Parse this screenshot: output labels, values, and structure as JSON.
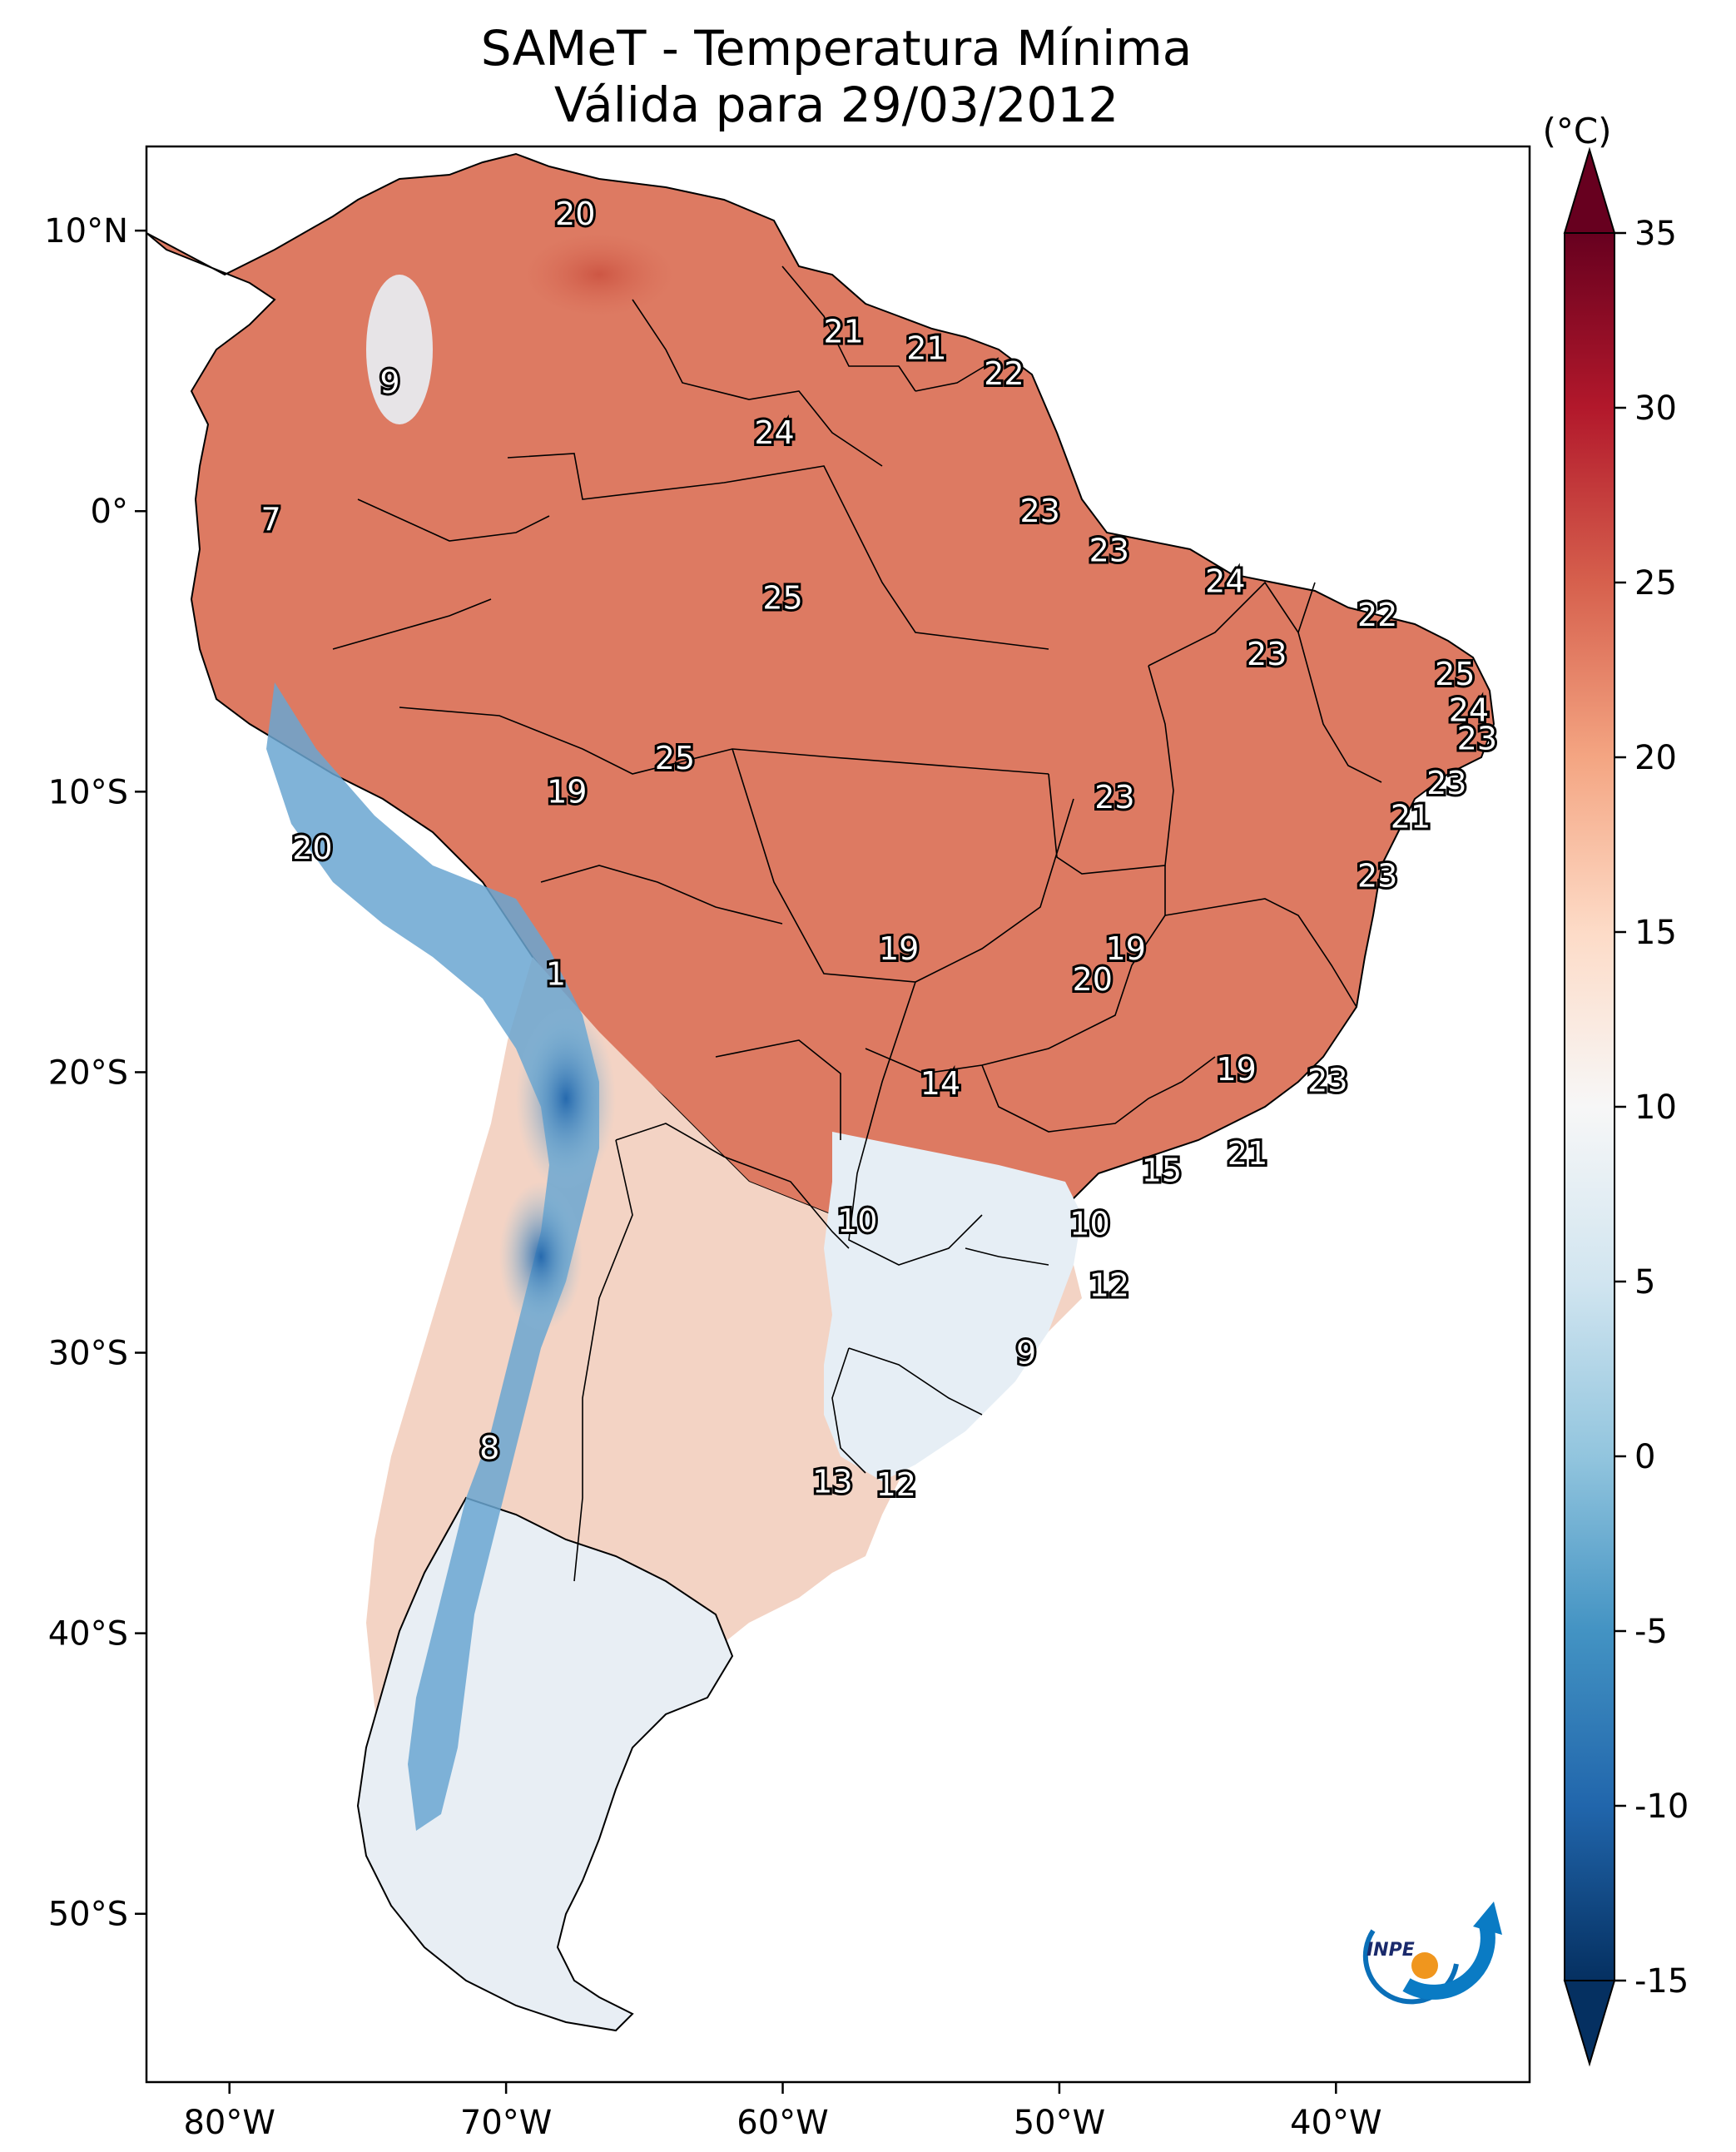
{
  "title": {
    "line1": "SAMeT - Temperatura Mínima",
    "line2": "Válida para 29/03/2012"
  },
  "map": {
    "x_ticks": [
      {
        "lon": -80,
        "label": "80°W"
      },
      {
        "lon": -70,
        "label": "70°W"
      },
      {
        "lon": -60,
        "label": "60°W"
      },
      {
        "lon": -50,
        "label": "50°W"
      },
      {
        "lon": -40,
        "label": "40°W"
      }
    ],
    "y_ticks": [
      {
        "lat": 10,
        "label": "10°N"
      },
      {
        "lat": 0,
        "label": "0°"
      },
      {
        "lat": -10,
        "label": "10°S"
      },
      {
        "lat": -20,
        "label": "20°S"
      },
      {
        "lat": -30,
        "label": "30°S"
      },
      {
        "lat": -40,
        "label": "40°S"
      },
      {
        "lat": -50,
        "label": "50°S"
      }
    ],
    "lon_range": [
      -83,
      -33
    ],
    "lat_range": [
      -56,
      13
    ],
    "labels": [
      {
        "text": "20",
        "lon": -67.5,
        "lat": 10.6
      },
      {
        "text": "9",
        "lon": -74.2,
        "lat": 4.6
      },
      {
        "text": "7",
        "lon": -78.5,
        "lat": -0.3
      },
      {
        "text": "21",
        "lon": -57.8,
        "lat": 6.4
      },
      {
        "text": "21",
        "lon": -54.8,
        "lat": 5.8
      },
      {
        "text": "22",
        "lon": -52.0,
        "lat": 4.9
      },
      {
        "text": "24",
        "lon": -60.3,
        "lat": 2.8
      },
      {
        "text": "23",
        "lon": -50.7,
        "lat": 0.0
      },
      {
        "text": "23",
        "lon": -48.2,
        "lat": -1.4
      },
      {
        "text": "24",
        "lon": -44.0,
        "lat": -2.5
      },
      {
        "text": "22",
        "lon": -38.5,
        "lat": -3.7
      },
      {
        "text": "25",
        "lon": -60.0,
        "lat": -3.1
      },
      {
        "text": "23",
        "lon": -42.5,
        "lat": -5.1
      },
      {
        "text": "25",
        "lon": -35.7,
        "lat": -5.8
      },
      {
        "text": "24",
        "lon": -35.2,
        "lat": -7.1
      },
      {
        "text": "23",
        "lon": -34.9,
        "lat": -8.1
      },
      {
        "text": "23",
        "lon": -36.0,
        "lat": -9.7
      },
      {
        "text": "21",
        "lon": -37.3,
        "lat": -10.9
      },
      {
        "text": "25",
        "lon": -63.9,
        "lat": -8.8
      },
      {
        "text": "19",
        "lon": -67.8,
        "lat": -10.0
      },
      {
        "text": "23",
        "lon": -48.0,
        "lat": -10.2
      },
      {
        "text": "20",
        "lon": -77.0,
        "lat": -12.0
      },
      {
        "text": "23",
        "lon": -38.5,
        "lat": -13.0
      },
      {
        "text": "19",
        "lon": -55.8,
        "lat": -15.6
      },
      {
        "text": "19",
        "lon": -47.6,
        "lat": -15.6
      },
      {
        "text": "20",
        "lon": -48.8,
        "lat": -16.7
      },
      {
        "text": "1",
        "lon": -68.2,
        "lat": -16.5
      },
      {
        "text": "19",
        "lon": -43.6,
        "lat": -19.9
      },
      {
        "text": "23",
        "lon": -40.3,
        "lat": -20.3
      },
      {
        "text": "14",
        "lon": -54.3,
        "lat": -20.4
      },
      {
        "text": "21",
        "lon": -43.2,
        "lat": -22.9
      },
      {
        "text": "15",
        "lon": -46.3,
        "lat": -23.5
      },
      {
        "text": "10",
        "lon": -57.3,
        "lat": -25.3
      },
      {
        "text": "10",
        "lon": -48.9,
        "lat": -25.4
      },
      {
        "text": "12",
        "lon": -48.2,
        "lat": -27.6
      },
      {
        "text": "9",
        "lon": -51.2,
        "lat": -30.0
      },
      {
        "text": "8",
        "lon": -70.6,
        "lat": -33.4
      },
      {
        "text": "13",
        "lon": -58.2,
        "lat": -34.6
      },
      {
        "text": "12",
        "lon": -55.9,
        "lat": -34.7
      }
    ]
  },
  "colorbar": {
    "unit": "(°C)",
    "min": -15,
    "max": 35,
    "ticks": [
      "35",
      "30",
      "25",
      "20",
      "15",
      "10",
      "5",
      "0",
      "-5",
      "-10",
      "-15"
    ]
  },
  "logo": {
    "text": "INPE"
  },
  "colors": {
    "warm_dark": "#b2182b",
    "warm": "#d6604d",
    "warm_light": "#f4a582",
    "neutral": "#f7f7f7",
    "cool_light": "#92c5de",
    "cool": "#4393c3",
    "cool_dark": "#2166ac"
  }
}
